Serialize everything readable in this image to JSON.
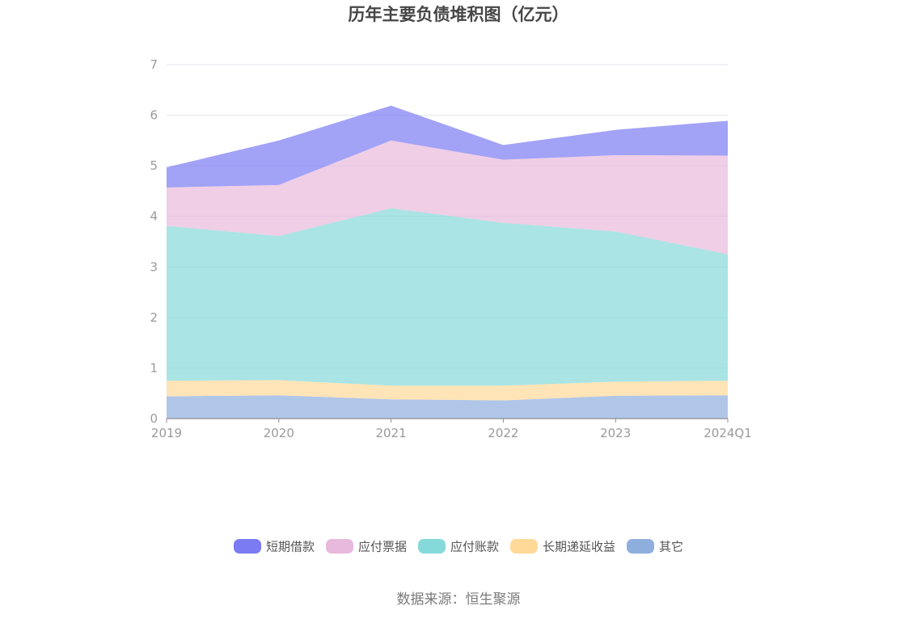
{
  "chart_data": {
    "type": "area",
    "stacked": true,
    "title": "历年主要负债堆积图（亿元）",
    "categories": [
      "2019",
      "2020",
      "2021",
      "2022",
      "2023",
      "2024Q1"
    ],
    "ylim": [
      0,
      7
    ],
    "yticks": [
      "0",
      "1",
      "2",
      "3",
      "4",
      "5",
      "6",
      "7"
    ],
    "grid": true,
    "legend_position": "bottom",
    "series": [
      {
        "name": "其它",
        "color": "#8EAEDE",
        "values": [
          0.44,
          0.46,
          0.38,
          0.36,
          0.45,
          0.46
        ]
      },
      {
        "name": "长期递延收益",
        "color": "#FFD998",
        "values": [
          0.31,
          0.3,
          0.27,
          0.29,
          0.28,
          0.29
        ]
      },
      {
        "name": "应付账款",
        "color": "#86D9D9",
        "values": [
          3.06,
          2.85,
          3.51,
          3.22,
          2.97,
          2.5
        ]
      },
      {
        "name": "应付票据",
        "color": "#E8B9DC",
        "values": [
          0.76,
          1.01,
          1.34,
          1.25,
          1.51,
          1.95
        ]
      },
      {
        "name": "短期借款",
        "color": "#7B7BF3",
        "values": [
          0.4,
          0.88,
          0.69,
          0.29,
          0.5,
          0.69
        ]
      }
    ]
  },
  "legend": [
    {
      "label": "短期借款",
      "color": "#7B7BF3"
    },
    {
      "label": "应付票据",
      "color": "#E8B9DC"
    },
    {
      "label": "应付账款",
      "color": "#86D9D9"
    },
    {
      "label": "长期递延收益",
      "color": "#FFD998"
    },
    {
      "label": "其它",
      "color": "#8EAEDE"
    }
  ],
  "source": "数据来源：恒生聚源"
}
